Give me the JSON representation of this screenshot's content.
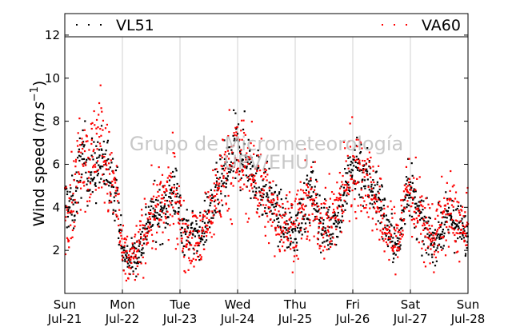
{
  "chart_data": {
    "type": "scatter",
    "ylabel": "Wind speed ($m s^{-1}$)",
    "ylabel_main": "Wind speed (",
    "ylabel_unit_m": "m",
    "ylabel_unit_s": "s",
    "ylabel_exp": "−1",
    "ylabel_close": ")",
    "ylim": [
      0,
      13
    ],
    "yticks": [
      2,
      4,
      6,
      8,
      10,
      12
    ],
    "xlim": [
      0,
      7
    ],
    "x_ticks": [
      {
        "day": "Sun",
        "date": "Jul-21"
      },
      {
        "day": "Mon",
        "date": "Jul-22"
      },
      {
        "day": "Tue",
        "date": "Jul-23"
      },
      {
        "day": "Wed",
        "date": "Jul-24"
      },
      {
        "day": "Thu",
        "date": "Jul-25"
      },
      {
        "day": "Fri",
        "date": "Jul-26"
      },
      {
        "day": "Sat",
        "date": "Jul-27"
      },
      {
        "day": "Sun",
        "date": "Jul-28"
      }
    ],
    "grid": "vertical",
    "legend_position": "top",
    "series": [
      {
        "name": "VL51",
        "color": "#000000",
        "mean_profile": [
          [
            0.0,
            4.2
          ],
          [
            0.15,
            4.0
          ],
          [
            0.3,
            6.5
          ],
          [
            0.45,
            5.5
          ],
          [
            0.6,
            6.0
          ],
          [
            0.75,
            5.8
          ],
          [
            0.9,
            4.8
          ],
          [
            1.0,
            1.8
          ],
          [
            1.15,
            1.6
          ],
          [
            1.3,
            2.0
          ],
          [
            1.45,
            3.5
          ],
          [
            1.6,
            3.7
          ],
          [
            1.75,
            4.0
          ],
          [
            1.9,
            5.0
          ],
          [
            2.05,
            3.0
          ],
          [
            2.2,
            2.8
          ],
          [
            2.35,
            2.6
          ],
          [
            2.5,
            3.8
          ],
          [
            2.65,
            4.6
          ],
          [
            2.8,
            5.5
          ],
          [
            2.95,
            6.6
          ],
          [
            3.1,
            6.5
          ],
          [
            3.25,
            5.8
          ],
          [
            3.4,
            5.0
          ],
          [
            3.55,
            4.5
          ],
          [
            3.7,
            3.6
          ],
          [
            3.85,
            3.0
          ],
          [
            4.0,
            2.8
          ],
          [
            4.15,
            4.0
          ],
          [
            4.3,
            4.8
          ],
          [
            4.45,
            3.2
          ],
          [
            4.6,
            3.0
          ],
          [
            4.75,
            3.6
          ],
          [
            4.9,
            5.0
          ],
          [
            5.05,
            6.2
          ],
          [
            5.2,
            5.5
          ],
          [
            5.35,
            5.0
          ],
          [
            5.5,
            4.0
          ],
          [
            5.65,
            2.6
          ],
          [
            5.8,
            2.2
          ],
          [
            5.95,
            5.4
          ],
          [
            6.1,
            3.8
          ],
          [
            6.25,
            3.0
          ],
          [
            6.4,
            2.4
          ],
          [
            6.55,
            3.0
          ],
          [
            6.7,
            3.6
          ],
          [
            6.85,
            3.0
          ],
          [
            7.0,
            2.6
          ]
        ]
      },
      {
        "name": "VA60",
        "color": "#ff0000",
        "mean_profile": [
          [
            0.0,
            4.0
          ],
          [
            0.15,
            4.4
          ],
          [
            0.3,
            7.0
          ],
          [
            0.45,
            6.0
          ],
          [
            0.6,
            7.5
          ],
          [
            0.75,
            5.5
          ],
          [
            0.9,
            4.6
          ],
          [
            1.0,
            1.6
          ],
          [
            1.15,
            1.5
          ],
          [
            1.3,
            2.2
          ],
          [
            1.45,
            3.4
          ],
          [
            1.6,
            3.8
          ],
          [
            1.75,
            4.2
          ],
          [
            1.9,
            4.8
          ],
          [
            2.05,
            2.8
          ],
          [
            2.2,
            2.5
          ],
          [
            2.35,
            2.4
          ],
          [
            2.5,
            3.6
          ],
          [
            2.65,
            4.8
          ],
          [
            2.8,
            5.8
          ],
          [
            2.95,
            6.3
          ],
          [
            3.1,
            6.0
          ],
          [
            3.25,
            5.5
          ],
          [
            3.4,
            5.2
          ],
          [
            3.55,
            4.0
          ],
          [
            3.7,
            3.5
          ],
          [
            3.85,
            3.3
          ],
          [
            4.0,
            3.0
          ],
          [
            4.15,
            4.2
          ],
          [
            4.3,
            4.0
          ],
          [
            4.45,
            3.5
          ],
          [
            4.6,
            3.2
          ],
          [
            4.75,
            4.0
          ],
          [
            4.9,
            5.5
          ],
          [
            5.05,
            6.0
          ],
          [
            5.2,
            5.4
          ],
          [
            5.35,
            4.8
          ],
          [
            5.5,
            3.4
          ],
          [
            5.65,
            2.6
          ],
          [
            5.8,
            2.6
          ],
          [
            5.95,
            5.0
          ],
          [
            6.1,
            4.0
          ],
          [
            6.25,
            3.0
          ],
          [
            6.4,
            2.6
          ],
          [
            6.55,
            3.4
          ],
          [
            6.7,
            3.8
          ],
          [
            6.85,
            3.2
          ],
          [
            7.0,
            2.8
          ]
        ]
      }
    ]
  },
  "watermark": {
    "line1": "Grupo de Micrometeorología",
    "line2": "UPV/EHU"
  }
}
